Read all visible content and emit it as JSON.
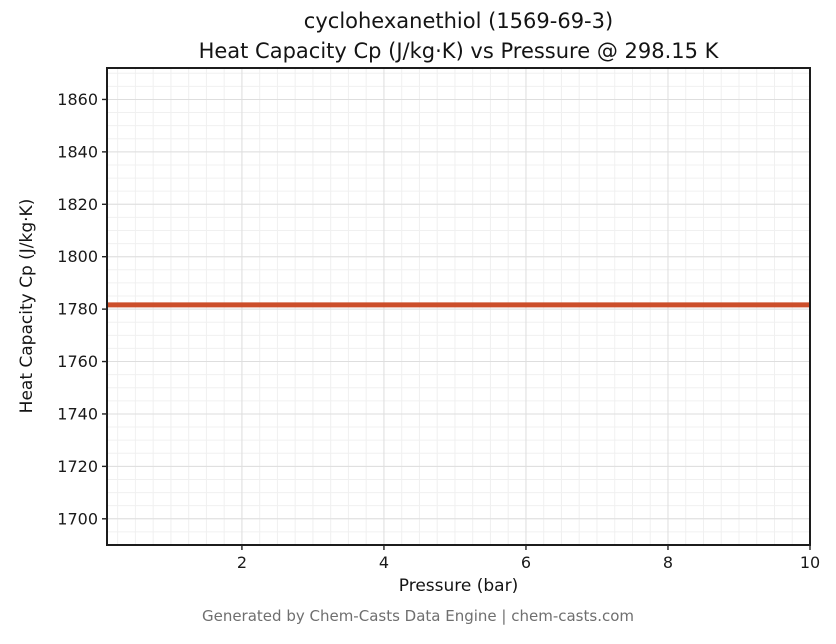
{
  "footer": {
    "text": "Generated by Chem-Casts Data Engine | chem-casts.com"
  },
  "chart_data": {
    "type": "line",
    "title": "cyclohexanethiol (1569-69-3)\nHeat Capacity Cp (J/kg·K) vs Pressure @ 298.15 K",
    "title_lines": [
      "cyclohexanethiol (1569-69-3)",
      "Heat Capacity Cp (J/kg·K) vs Pressure @ 298.15 K"
    ],
    "xlabel": "Pressure (bar)",
    "ylabel": "Heat Capacity Cp (J/kg·K)",
    "series": [
      {
        "name": "Heat Capacity Cp",
        "x": [
          0.1,
          1,
          2,
          3,
          4,
          5,
          6,
          7,
          8,
          9,
          10
        ],
        "y": [
          1781.6,
          1781.6,
          1781.6,
          1781.6,
          1781.6,
          1781.6,
          1781.6,
          1781.6,
          1781.6,
          1781.6,
          1781.6
        ]
      }
    ],
    "xlim": [
      0.1,
      10
    ],
    "ylim": [
      1690,
      1872
    ],
    "xticks": [
      2,
      4,
      6,
      8,
      10
    ],
    "yticks": [
      1700,
      1720,
      1740,
      1760,
      1780,
      1800,
      1820,
      1840,
      1860
    ],
    "x_minor_step": 0.25,
    "y_minor_step": 5,
    "grid": true,
    "legend": "none",
    "line_color": "#cc4e2a",
    "line_width": 5,
    "major_grid_color": "#dedede",
    "minor_grid_color": "#f0f0f0",
    "border_color": "#1c1c1c",
    "tick_color": "#222222",
    "tick_label_color": "#1a1a1a"
  }
}
